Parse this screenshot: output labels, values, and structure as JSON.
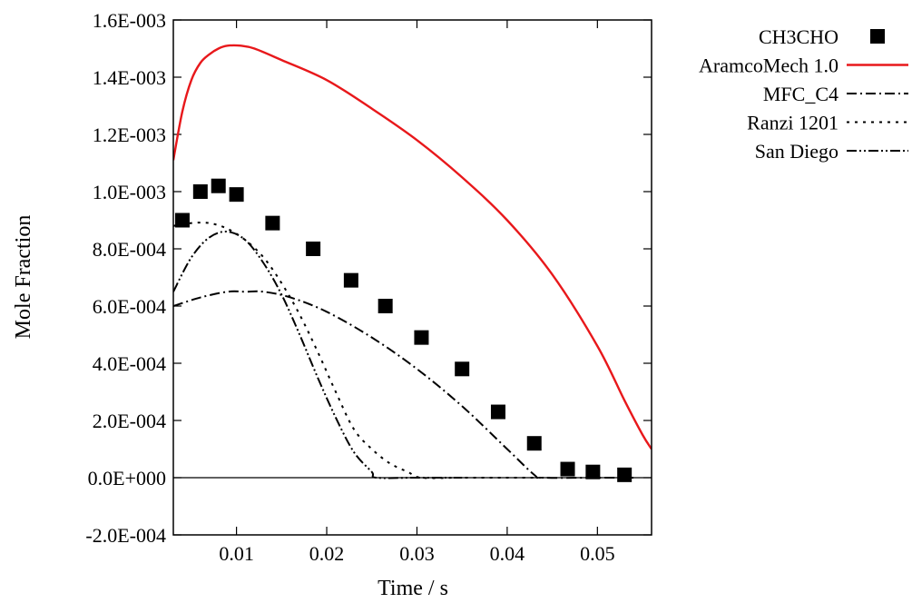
{
  "chart_data": {
    "type": "scatter",
    "title": "",
    "xlabel": "Time / s",
    "ylabel": "Mole Fraction",
    "xlim": [
      0.003,
      0.056
    ],
    "ylim": [
      -0.0002,
      0.0016
    ],
    "xticks": [
      0.01,
      0.02,
      0.03,
      0.04,
      0.05
    ],
    "xtick_labels": [
      "0.01",
      "0.02",
      "0.03",
      "0.04",
      "0.05"
    ],
    "yticks": [
      -0.0002,
      0.0,
      0.0002,
      0.0004,
      0.0006,
      0.0008,
      0.001,
      0.0012,
      0.0014,
      0.0016
    ],
    "ytick_labels": [
      "-2.0E-004",
      "0.0E+000",
      "2.0E-004",
      "4.0E-004",
      "6.0E-004",
      "8.0E-004",
      "1.0E-003",
      "1.2E-003",
      "1.4E-003",
      "1.6E-003"
    ],
    "grid": false,
    "legend_position": "outside-right-top",
    "series": [
      {
        "name": "CH3CHO",
        "kind": "markers",
        "marker": "square",
        "color": "#000000",
        "x": [
          0.004,
          0.006,
          0.008,
          0.01,
          0.014,
          0.0185,
          0.0227,
          0.0265,
          0.0305,
          0.035,
          0.039,
          0.043,
          0.0467,
          0.0495,
          0.053
        ],
        "y": [
          0.0009,
          0.001,
          0.00102,
          0.00099,
          0.00089,
          0.0008,
          0.00069,
          0.0006,
          0.00049,
          0.00038,
          0.00023,
          0.00012,
          3e-05,
          2e-05,
          1e-05
        ]
      },
      {
        "name": "AramcoMech 1.0",
        "kind": "line",
        "dash": "solid",
        "color": "#e8181b",
        "x": [
          0.003,
          0.004,
          0.005,
          0.006,
          0.007,
          0.008,
          0.009,
          0.0105,
          0.012,
          0.015,
          0.02,
          0.025,
          0.03,
          0.035,
          0.04,
          0.045,
          0.05,
          0.053,
          0.055,
          0.056
        ],
        "y": [
          0.00111,
          0.00128,
          0.00139,
          0.00145,
          0.00148,
          0.0015,
          0.00151,
          0.00151,
          0.0015,
          0.00146,
          0.00139,
          0.00129,
          0.00118,
          0.00105,
          0.0009,
          0.00071,
          0.00046,
          0.00027,
          0.00015,
          0.0001
        ]
      },
      {
        "name": "MFC_C4",
        "kind": "line",
        "dash": "dash-dot",
        "color": "#000000",
        "x": [
          0.003,
          0.006,
          0.009,
          0.011,
          0.013,
          0.016,
          0.02,
          0.025,
          0.03,
          0.035,
          0.04,
          0.043,
          0.044,
          0.05,
          0.054
        ],
        "y": [
          0.0006,
          0.00063,
          0.00065,
          0.00065,
          0.00065,
          0.00063,
          0.00058,
          0.00049,
          0.00038,
          0.00025,
          0.0001,
          1e-05,
          0.0,
          0.0,
          0.0
        ]
      },
      {
        "name": "Ranzi 1201",
        "kind": "line",
        "dash": "dotted",
        "color": "#000000",
        "x": [
          0.003,
          0.005,
          0.007,
          0.009,
          0.011,
          0.013,
          0.015,
          0.017,
          0.019,
          0.021,
          0.023,
          0.025,
          0.027,
          0.029,
          0.0305,
          0.035,
          0.04,
          0.045
        ],
        "y": [
          0.00088,
          0.00089,
          0.00089,
          0.00087,
          0.00083,
          0.00077,
          0.00068,
          0.00057,
          0.00044,
          0.0003,
          0.00017,
          0.0001,
          5e-05,
          2e-05,
          0.0,
          0.0,
          0.0,
          0.0
        ]
      },
      {
        "name": "San Diego",
        "kind": "line",
        "dash": "dash-dot-dot",
        "color": "#000000",
        "x": [
          0.003,
          0.005,
          0.007,
          0.009,
          0.011,
          0.013,
          0.015,
          0.017,
          0.019,
          0.021,
          0.023,
          0.025,
          0.0255,
          0.03,
          0.035
        ],
        "y": [
          0.00065,
          0.00077,
          0.00084,
          0.00086,
          0.00083,
          0.00075,
          0.00064,
          0.0005,
          0.00035,
          0.00021,
          9e-05,
          2e-05,
          0.0,
          0.0,
          0.0
        ]
      }
    ]
  }
}
